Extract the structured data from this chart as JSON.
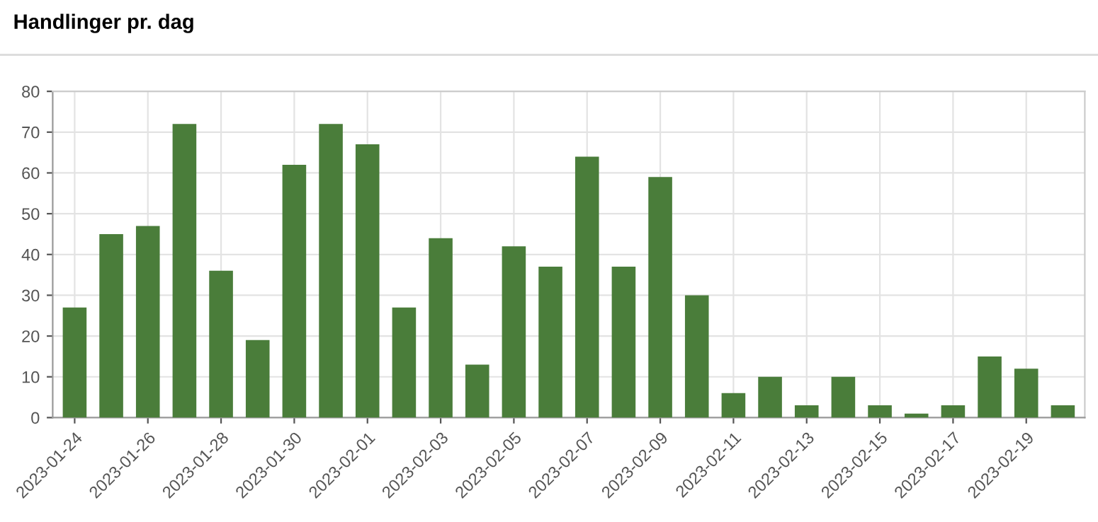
{
  "chart_data": {
    "type": "bar",
    "title": "Handlinger pr. dag",
    "categories": [
      "2023-01-24",
      null,
      "2023-01-26",
      null,
      "2023-01-28",
      null,
      "2023-01-30",
      null,
      "2023-02-01",
      null,
      "2023-02-03",
      null,
      "2023-02-05",
      null,
      "2023-02-07",
      null,
      "2023-02-09",
      null,
      "2023-02-11",
      null,
      "2023-02-13",
      null,
      "2023-02-15",
      null,
      "2023-02-17",
      null,
      "2023-02-19",
      null
    ],
    "values": [
      27,
      45,
      47,
      72,
      36,
      19,
      62,
      72,
      67,
      27,
      44,
      13,
      42,
      37,
      64,
      37,
      59,
      30,
      6,
      10,
      3,
      10,
      3,
      1,
      3,
      15,
      12,
      3
    ],
    "color": "#4a7d3a",
    "ylim": [
      0,
      80
    ],
    "yticks": [
      0,
      10,
      20,
      30,
      40,
      50,
      60,
      70,
      80
    ],
    "grid": true
  }
}
